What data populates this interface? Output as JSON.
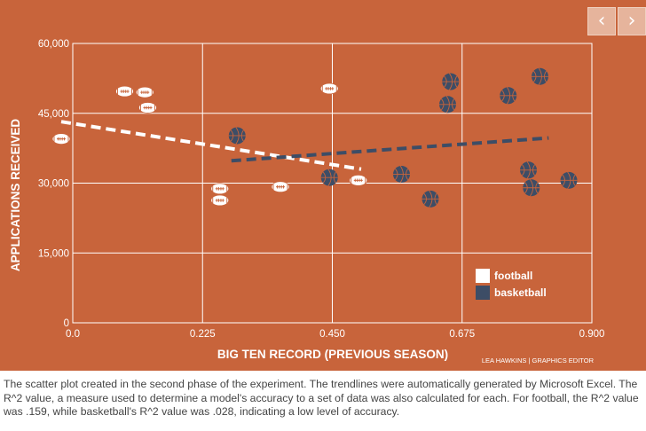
{
  "chart_data": {
    "type": "scatter",
    "xlabel": "BIG TEN RECORD (PREVIOUS SEASON)",
    "ylabel": "APPLICATIONS RECEIVED",
    "xlim": [
      0,
      0.9
    ],
    "ylim": [
      0,
      60000
    ],
    "x_ticks": [
      "0.0",
      "0.225",
      "0.450",
      "0.675",
      "0.900"
    ],
    "x_tick_values": [
      0,
      0.225,
      0.45,
      0.675,
      0.9
    ],
    "y_ticks": [
      "0",
      "15,000",
      "30,000",
      "45,000",
      "60,000"
    ],
    "y_tick_values": [
      0,
      15000,
      30000,
      45000,
      60000
    ],
    "grid": true,
    "legend_position": "bottom-right",
    "series": [
      {
        "name": "football",
        "marker": "football-icon",
        "color": "#ffffff",
        "points": [
          {
            "x": -0.02,
            "y": 39500
          },
          {
            "x": 0.09,
            "y": 49700
          },
          {
            "x": 0.125,
            "y": 49500
          },
          {
            "x": 0.13,
            "y": 46200
          },
          {
            "x": 0.255,
            "y": 28800
          },
          {
            "x": 0.255,
            "y": 26300
          },
          {
            "x": 0.36,
            "y": 29200
          },
          {
            "x": 0.445,
            "y": 50300
          },
          {
            "x": 0.495,
            "y": 30600
          }
        ],
        "trendline": {
          "x": [
            -0.02,
            0.5
          ],
          "y": [
            43200,
            33000
          ]
        }
      },
      {
        "name": "basketball",
        "marker": "basketball-icon",
        "color": "#3d4d66",
        "points": [
          {
            "x": 0.285,
            "y": 40200
          },
          {
            "x": 0.445,
            "y": 31200
          },
          {
            "x": 0.57,
            "y": 31900
          },
          {
            "x": 0.62,
            "y": 26600
          },
          {
            "x": 0.65,
            "y": 46900
          },
          {
            "x": 0.655,
            "y": 51800
          },
          {
            "x": 0.755,
            "y": 48800
          },
          {
            "x": 0.81,
            "y": 52900
          },
          {
            "x": 0.79,
            "y": 32800
          },
          {
            "x": 0.795,
            "y": 29000
          },
          {
            "x": 0.86,
            "y": 30600
          }
        ],
        "trendline": {
          "x": [
            0.275,
            0.825
          ],
          "y": [
            34800,
            39700
          ]
        }
      }
    ],
    "credit": "LEA HAWKINS | GRAPHICS EDITOR"
  },
  "nav": {
    "prev_icon": "chevron-left-icon",
    "next_icon": "chevron-right-icon",
    "prev_glyph": "‹",
    "next_glyph": "›"
  },
  "caption": "The scatter plot created in the second phase of the experiment. The trendlines were automatically generated by Microsoft Excel. The R^2 value, a measure used to determine a model's accuracy to a set of data was also calculated for each. For football, the R^2 value was .159, while basketball's R^2 value was .028, indicating a low level of accuracy."
}
